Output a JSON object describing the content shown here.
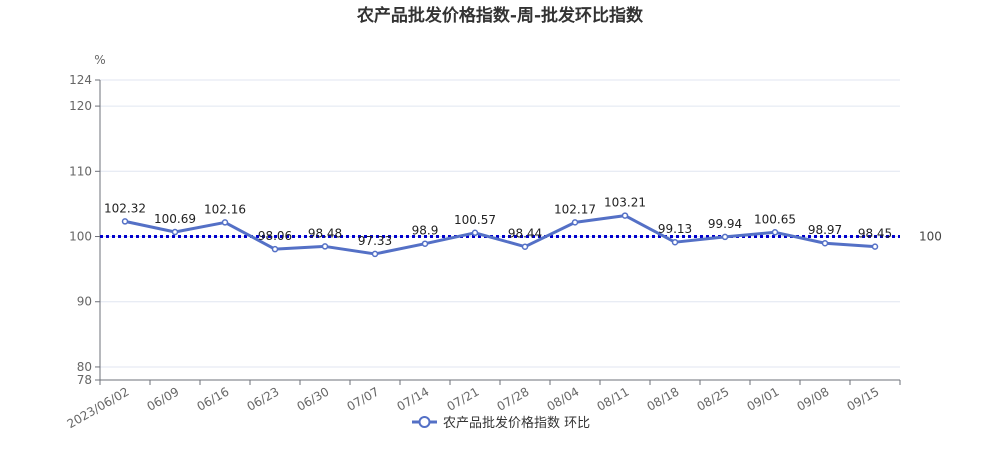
{
  "chart_data": {
    "type": "line",
    "title": "农产品批发价格指数-周-批发环比指数",
    "ylabel": "%",
    "ylim": [
      78,
      124
    ],
    "yticks": [
      78,
      80,
      90,
      100,
      110,
      120,
      124
    ],
    "grid": true,
    "legend_position": "bottom",
    "categories": [
      "2023/06/02",
      "06/09",
      "06/16",
      "06/23",
      "06/30",
      "07/07",
      "07/14",
      "07/21",
      "07/28",
      "08/04",
      "08/11",
      "08/18",
      "08/25",
      "09/01",
      "09/08",
      "09/15"
    ],
    "series": [
      {
        "name": "农产品批发价格指数 环比",
        "color": "#5470c6",
        "values": [
          102.32,
          100.69,
          102.16,
          98.06,
          98.48,
          97.33,
          98.9,
          100.57,
          98.44,
          102.17,
          103.21,
          99.13,
          99.94,
          100.65,
          98.97,
          98.45
        ]
      }
    ],
    "reference_line": {
      "value": 100,
      "label": "100",
      "color": "#0000cc"
    }
  }
}
